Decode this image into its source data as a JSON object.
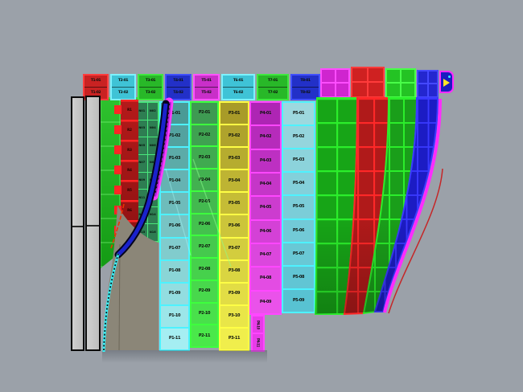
{
  "canvas": {
    "background": "#9ba1a9"
  },
  "top_band": {
    "panels": [
      {
        "id": "band-1-red",
        "fill": "#c92222",
        "border": "#ff3d3d",
        "labels": [
          "T1-01",
          "T1-02"
        ]
      },
      {
        "id": "band-2-cyan",
        "fill": "#3fc3d6",
        "border": "#7df2ff",
        "labels": [
          "T2-01",
          "T2-02"
        ]
      },
      {
        "id": "band-3-green",
        "fill": "#28b828",
        "border": "#3fe83f",
        "labels": [
          "T3-01",
          "T3-02"
        ]
      },
      {
        "id": "band-4-blue",
        "fill": "#2230c8",
        "border": "#4150ff",
        "labels": [
          "T4-01",
          "T4-02"
        ]
      },
      {
        "id": "band-5-magenta",
        "fill": "#c92fc9",
        "border": "#ff52ff",
        "labels": [
          "T5-01",
          "T5-02"
        ]
      },
      {
        "id": "band-6-cyan",
        "fill": "#3fc3d6",
        "border": "#7df2ff",
        "labels": [
          "T6-01",
          "T6-02"
        ]
      },
      {
        "id": "band-7-green",
        "fill": "#28b828",
        "border": "#3fe83f",
        "labels": [
          "T7-01",
          "T7-02"
        ]
      },
      {
        "id": "band-8-blue",
        "fill": "#2230c8",
        "border": "#4150ff",
        "labels": [
          "T8-01",
          "T8-02"
        ]
      }
    ]
  },
  "caps": [
    {
      "id": "cap-magenta",
      "fill": "#cf25cf",
      "line": "#ff4dff"
    },
    {
      "id": "cap-red",
      "fill": "#cf2121",
      "line": "#ff3b3b"
    },
    {
      "id": "cap-green",
      "fill": "#24c324",
      "line": "#49ff49"
    },
    {
      "id": "cap-blue",
      "fill": "#2427cf",
      "line": "#4549ff"
    }
  ],
  "columns": [
    {
      "id": "col-cyan",
      "border": "#4df2ff",
      "fill_top": "#4a9a96",
      "fill_bottom": "#a5eef2",
      "cells": [
        "P1-01",
        "P1-02",
        "P1-03",
        "P1-04",
        "P1-05",
        "P1-06",
        "P1-07",
        "P1-08",
        "P1-09",
        "P1-10",
        "P1-11"
      ]
    },
    {
      "id": "col-green",
      "border": "#3dff3d",
      "fill_top": "#3e9a52",
      "fill_bottom": "#4ae84a",
      "cells": [
        "P2-01",
        "P2-02",
        "P2-03",
        "P2-04",
        "P2-05",
        "P2-06",
        "P2-07",
        "P2-08",
        "P2-09",
        "P2-10",
        "P2-11"
      ]
    },
    {
      "id": "col-yellow",
      "border": "#ffff45",
      "fill_top": "#a89b28",
      "fill_bottom": "#f0ee4c",
      "cells": [
        "P3-01",
        "P3-02",
        "P3-03",
        "P3-04",
        "P3-05",
        "P3-06",
        "P3-07",
        "P3-08",
        "P3-09",
        "P3-10",
        "P3-11"
      ]
    },
    {
      "id": "col-magenta",
      "border": "#ff47ff",
      "fill_top": "#ae25b4",
      "fill_bottom": "#ea52ea",
      "cells": [
        "P4-01",
        "P4-02",
        "P4-03",
        "P4-04",
        "P4-05",
        "P4-06",
        "P4-07",
        "P4-08",
        "P4-09"
      ]
    },
    {
      "id": "col-teal",
      "border": "#4df2ff",
      "fill_top": "#9dd8de",
      "fill_bottom": "#58c2d2",
      "cells": [
        "P5-01",
        "P5-02",
        "P5-03",
        "P5-04",
        "P5-05",
        "P5-06",
        "P5-07",
        "P5-08",
        "P5-09"
      ]
    }
  ],
  "magenta_tabs": {
    "fill": "#e83ce8",
    "border": "#ff47ff",
    "labels": [
      "P4-10",
      "P4-11"
    ]
  },
  "mini_grid": {
    "fill": "#2e7d52",
    "border": "#49e87d",
    "labels": [
      "N01",
      "N02",
      "N03",
      "N04",
      "N05",
      "N06",
      "N07",
      "N08",
      "N09",
      "N10",
      "N11",
      "N12",
      "N13",
      "N14",
      "N15",
      "N16"
    ]
  },
  "red_strip": {
    "fill": "#a81616",
    "stripe": "#ff2525",
    "labels": [
      "R1",
      "R2",
      "R3",
      "R4",
      "R5",
      "R6",
      "R7"
    ]
  },
  "green_strip": {
    "fill_top": "#2ec22e",
    "fill_bottom": "#149a14"
  },
  "right_panels": [
    {
      "id": "panel-green-wide",
      "fill": "#17a517",
      "line": "#2bee2b"
    },
    {
      "id": "panel-red",
      "fill": "#b01a1a",
      "line": "#ff2828"
    },
    {
      "id": "panel-green",
      "fill": "#1a9e1a",
      "line": "#2bee2b"
    },
    {
      "id": "panel-blue",
      "fill": "#1c1cc4",
      "line": "#3a3aff"
    }
  ],
  "edges": {
    "magenta": "#ff2bff",
    "red": "#cc1111"
  },
  "curves": {
    "magenta_outer": "#ff3dff",
    "magenta_inner": "#ae1fd4",
    "blue_dark": "#05051e",
    "blue": "#1a22cc",
    "cyan": "#3aeef5",
    "red_dash": "#ee3300"
  },
  "backside": {
    "fill": "#8b8678"
  },
  "left_bars": {
    "fill": "#c8c8c8",
    "outline": "#0b0b0b"
  },
  "wrap_cap": {
    "fill": "#1c1cc0",
    "border": "#ff2bff",
    "arrow": "#ffe428",
    "dot": "#3af0ff"
  }
}
